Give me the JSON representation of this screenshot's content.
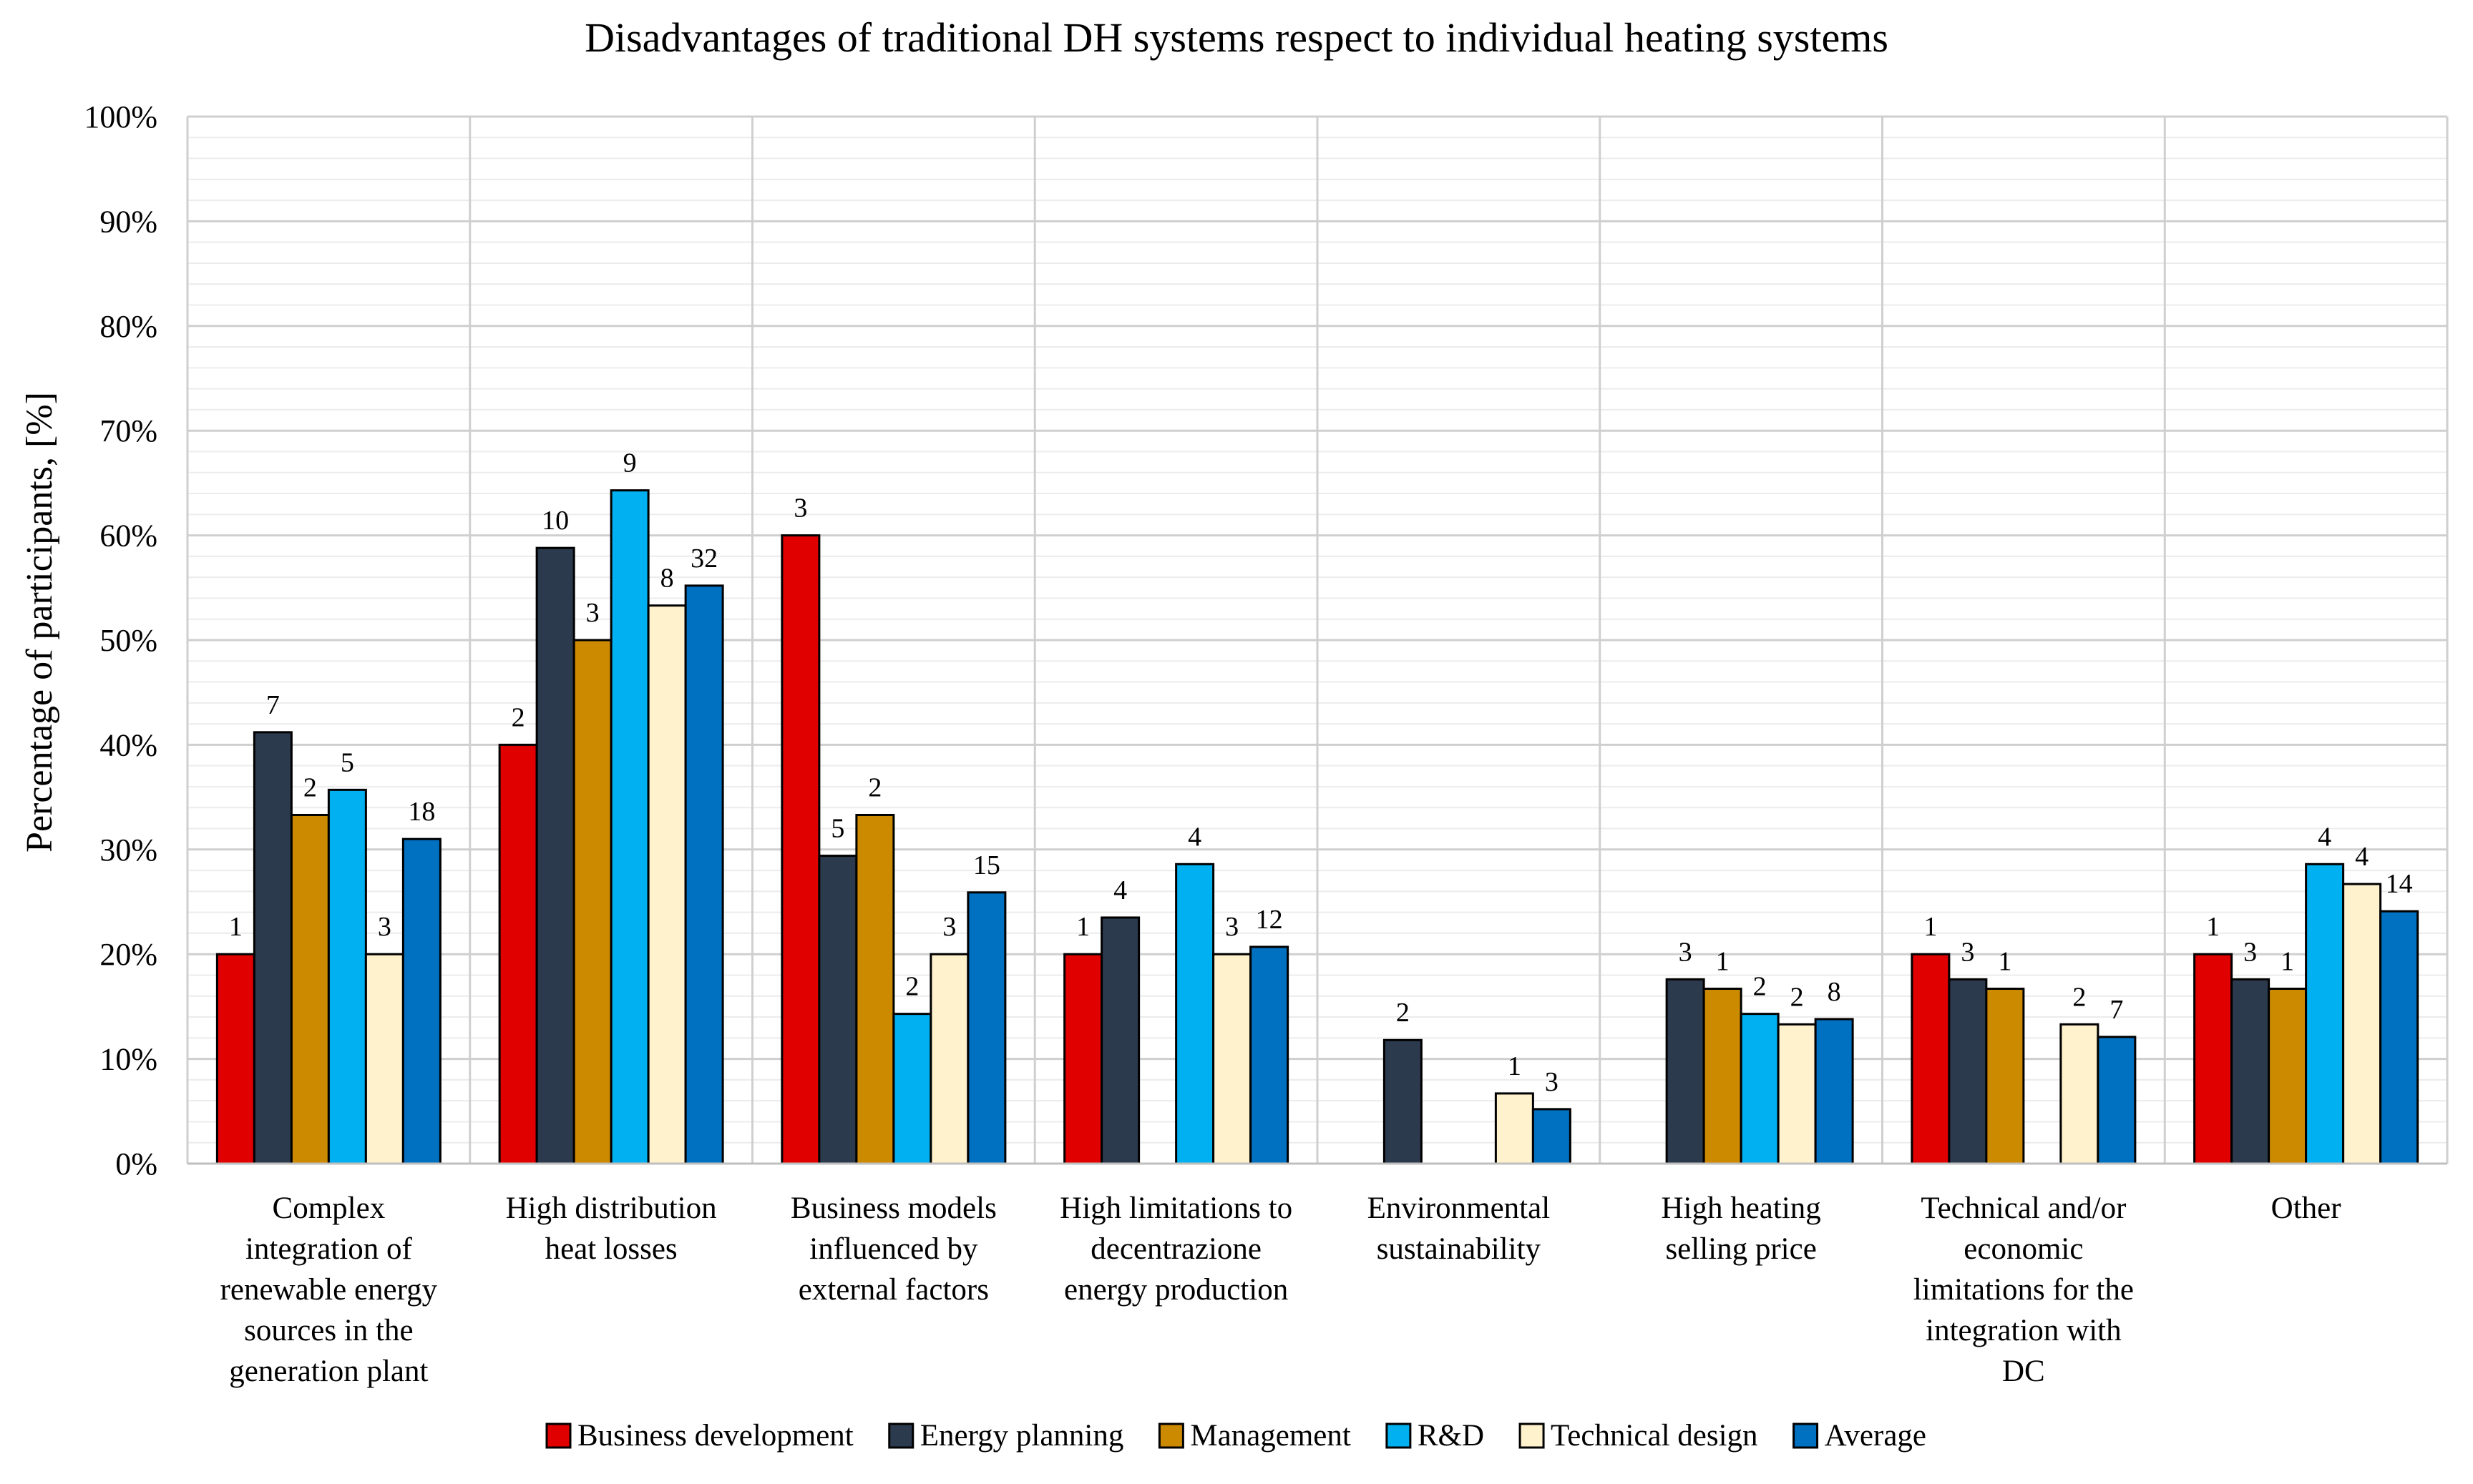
{
  "chart_data": {
    "type": "bar",
    "title": "Disadvantages of traditional DH systems respect to individual heating systems",
    "xlabel": "",
    "ylabel": "Percentage of participants, [%]",
    "ylim": [
      0,
      100
    ],
    "yticks": [
      "0%",
      "10%",
      "20%",
      "30%",
      "40%",
      "50%",
      "60%",
      "70%",
      "80%",
      "90%",
      "100%"
    ],
    "grid": true,
    "legend_position": "bottom",
    "categories": [
      [
        "Complex",
        "integration of",
        "renewable energy",
        "sources in the",
        "generation plant"
      ],
      [
        "High distribution",
        "heat losses"
      ],
      [
        "Business models",
        "influenced by",
        "external factors"
      ],
      [
        "High limitations to",
        "decentrazione",
        "energy production"
      ],
      [
        "Environmental",
        "sustainability"
      ],
      [
        "High heating",
        "selling price"
      ],
      [
        "Technical and/or",
        "economic",
        "limitations for the",
        "integration with",
        "DC"
      ],
      [
        "Other"
      ]
    ],
    "series": [
      {
        "name": "Business development",
        "color": "#e00000",
        "values": [
          20,
          40,
          60,
          20,
          0,
          0,
          20,
          20
        ],
        "labels": [
          "1",
          "2",
          "3",
          "1",
          "",
          "",
          "1",
          "1"
        ]
      },
      {
        "name": "Energy planning",
        "color": "#2c3a4e",
        "values": [
          41.2,
          58.8,
          29.4,
          23.5,
          11.8,
          17.6,
          17.6,
          17.6
        ],
        "labels": [
          "7",
          "10",
          "5",
          "4",
          "2",
          "3",
          "3",
          "3"
        ]
      },
      {
        "name": "Management",
        "color": "#cc8a00",
        "values": [
          33.3,
          50,
          33.3,
          0,
          0,
          16.7,
          16.7,
          16.7
        ],
        "labels": [
          "2",
          "3",
          "2",
          "",
          "",
          "1",
          "1",
          "1"
        ]
      },
      {
        "name": "R&D",
        "color": "#00b0f0",
        "values": [
          35.7,
          64.3,
          14.3,
          28.6,
          0,
          14.3,
          0,
          28.6
        ],
        "labels": [
          "5",
          "9",
          "2",
          "4",
          "",
          "2",
          "",
          "4"
        ]
      },
      {
        "name": "Technical design",
        "color": "#fff2cc",
        "values": [
          20,
          53.3,
          20,
          20,
          6.7,
          13.3,
          13.3,
          26.7
        ],
        "labels": [
          "3",
          "8",
          "3",
          "3",
          "1",
          "2",
          "2",
          "4"
        ]
      },
      {
        "name": "Average",
        "color": "#0070c0",
        "values": [
          31,
          55.2,
          25.9,
          20.7,
          5.2,
          13.8,
          12.1,
          24.1
        ],
        "labels": [
          "18",
          "32",
          "15",
          "12",
          "3",
          "8",
          "7",
          "14"
        ]
      }
    ]
  }
}
